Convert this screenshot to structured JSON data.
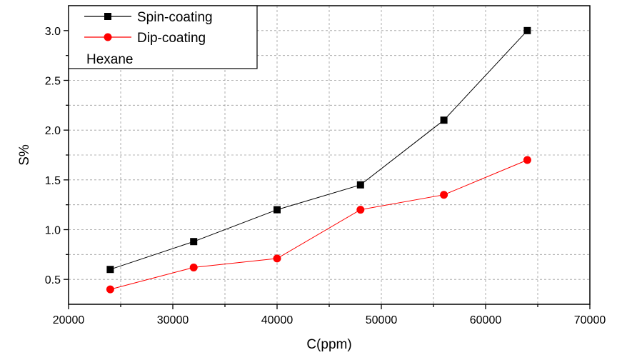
{
  "chart_data": {
    "type": "line",
    "title": "",
    "xlabel": "C(ppm)",
    "ylabel": "S%",
    "xlim": [
      20000,
      70000
    ],
    "ylim": [
      0.25,
      3.25
    ],
    "x_ticks": [
      20000,
      30000,
      40000,
      50000,
      60000,
      70000
    ],
    "x_tick_labels": [
      "20000",
      "30000",
      "40000",
      "50000",
      "60000",
      "70000"
    ],
    "y_ticks": [
      0.5,
      1.0,
      1.5,
      2.0,
      2.5,
      3.0
    ],
    "y_tick_labels": [
      "0.5",
      "1.0",
      "1.5",
      "2.0",
      "2.5",
      "3.0"
    ],
    "grid": true,
    "legend_position": "top-left",
    "x": [
      24000,
      32000,
      40000,
      48000,
      56000,
      64000
    ],
    "series": [
      {
        "name": "Spin-coating",
        "marker": "square",
        "color": "#000000",
        "values": [
          0.6,
          0.88,
          1.2,
          1.45,
          2.1,
          3.0
        ]
      },
      {
        "name": "Dip-coating",
        "marker": "circle",
        "color": "#ff0000",
        "values": [
          0.4,
          0.62,
          0.71,
          1.2,
          1.35,
          1.7
        ]
      }
    ],
    "annotation": "Hexane"
  }
}
